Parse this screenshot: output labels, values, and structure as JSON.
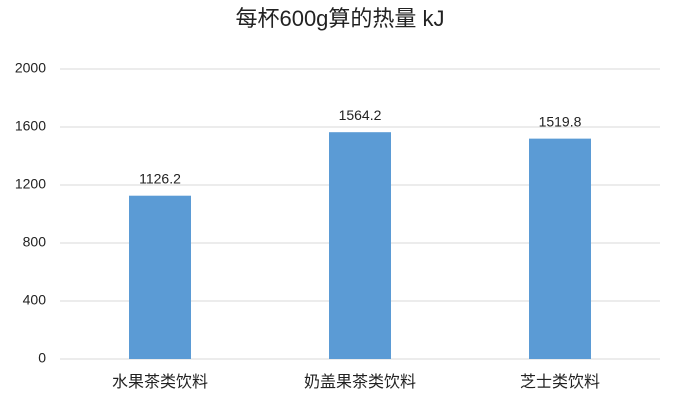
{
  "chart_data": {
    "type": "bar",
    "title": "每杯600g算的热量 kJ",
    "categories": [
      "水果茶类饮料",
      "奶盖果茶类饮料",
      "芝士类饮料"
    ],
    "values": [
      1126.2,
      1564.2,
      1519.8
    ],
    "color": "#5b9bd5",
    "ylim": [
      0,
      2000
    ],
    "yticks": [
      0,
      400,
      800,
      1200,
      1600,
      2000
    ],
    "grid": true
  }
}
